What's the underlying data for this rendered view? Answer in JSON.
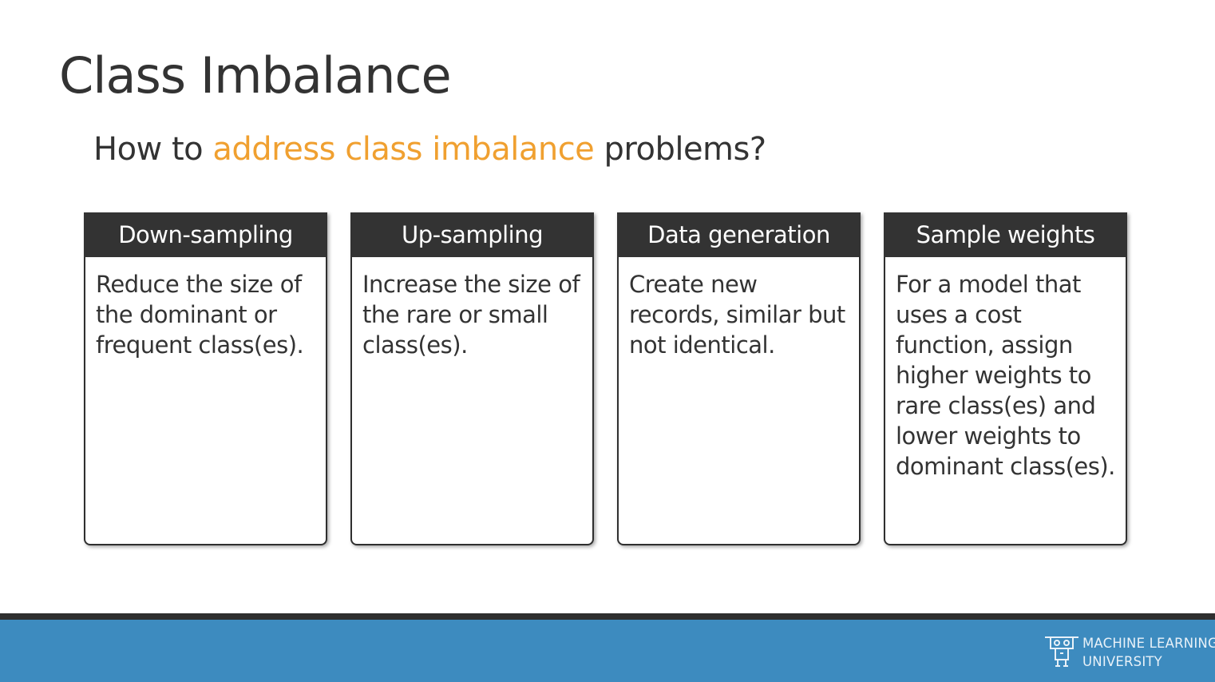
{
  "slide": {
    "title": "Class Imbalance",
    "subtitle": {
      "before": "How to ",
      "highlight": "address class imbalance",
      "after": " problems?",
      "highlight_color": "#f0a030"
    }
  },
  "cards": [
    {
      "header": "Down-sampling",
      "body": "Reduce the size of the dominant or frequent class(es)."
    },
    {
      "header": "Up-sampling",
      "body": "Increase the size of the rare or small class(es)."
    },
    {
      "header": "Data generation",
      "body": "Create new records, similar but not identical."
    },
    {
      "header": "Sample weights",
      "body": "For a model that uses a cost function, assign higher weights to rare class(es) and lower weights to dominant class(es)."
    }
  ],
  "footer": {
    "logo_icon": "mlu-robot-icon",
    "brand_line1": "MACHINE LEARNING",
    "brand_line2": "UNIVERSITY",
    "bar_color": "#3d8bbf"
  }
}
